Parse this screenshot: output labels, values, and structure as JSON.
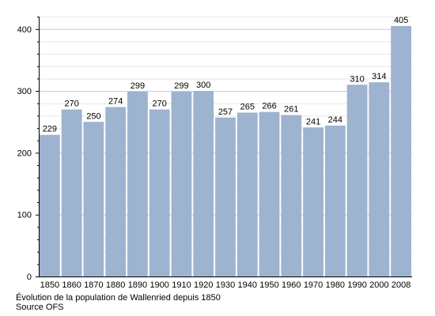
{
  "chart_data": {
    "type": "bar",
    "categories": [
      "1850",
      "1860",
      "1870",
      "1880",
      "1890",
      "1900",
      "1910",
      "1920",
      "1930",
      "1940",
      "1950",
      "1960",
      "1970",
      "1980",
      "1990",
      "2000",
      "2008"
    ],
    "values": [
      229,
      270,
      250,
      274,
      299,
      270,
      299,
      300,
      257,
      265,
      266,
      261,
      241,
      244,
      310,
      314,
      405
    ],
    "ylim": [
      0,
      420
    ],
    "yticks": [
      0,
      100,
      200,
      300,
      400
    ],
    "grid": true,
    "bar_color": "#9db3cf",
    "grid_color": "#cccccc"
  },
  "caption": {
    "title": "Évolution de la population de Wallenried depuis 1850",
    "source": "Source OFS"
  }
}
